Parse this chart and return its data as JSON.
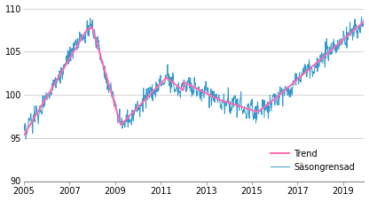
{
  "title": "",
  "xlim": [
    2005.0,
    2019.92
  ],
  "ylim": [
    90,
    110
  ],
  "yticks": [
    90,
    95,
    100,
    105,
    110
  ],
  "xticks": [
    2005,
    2007,
    2009,
    2011,
    2013,
    2015,
    2017,
    2019
  ],
  "trend_color": "#FF69B4",
  "seas_color": "#3399CC",
  "trend_label": "Trend",
  "seas_label": "Säsongrensad",
  "trend_lw": 1.4,
  "seas_lw": 0.7,
  "background_color": "#ffffff",
  "grid_color": "#cccccc",
  "legend_fontsize": 7,
  "tick_fontsize": 7
}
